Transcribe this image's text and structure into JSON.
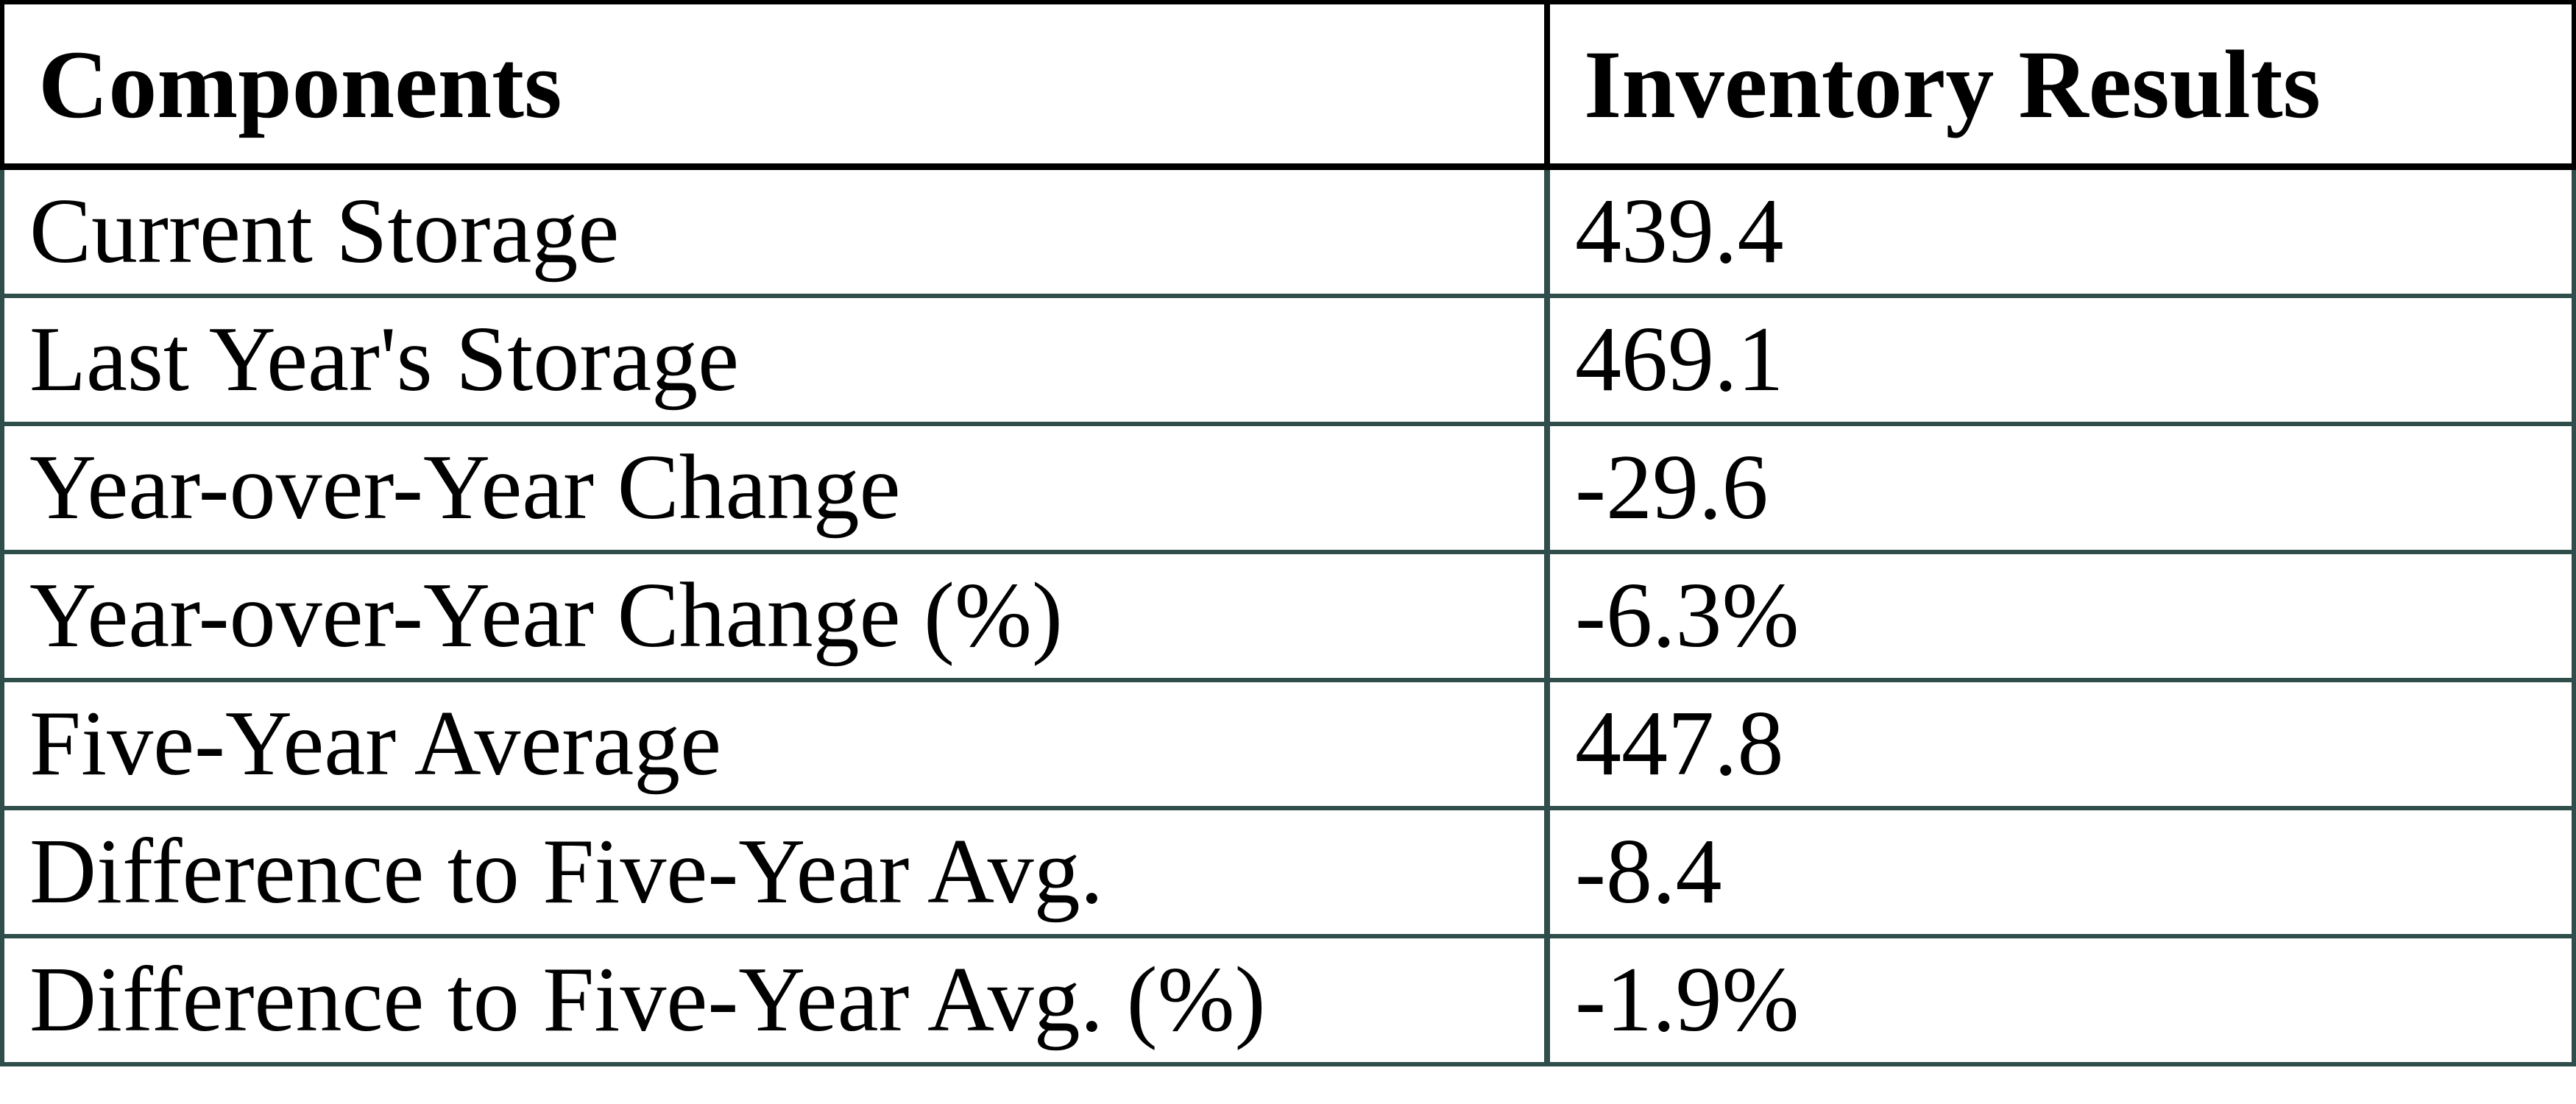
{
  "table": {
    "columns": [
      "Components",
      "Inventory Results"
    ],
    "rows": [
      {
        "component": "Current Storage",
        "value": "439.4"
      },
      {
        "component": "Last Year's Storage",
        "value": "469.1"
      },
      {
        "component": "Year-over-Year Change",
        "value": "-29.6"
      },
      {
        "component": "Year-over-Year Change (%)",
        "value": "-6.3%"
      },
      {
        "component": "Five-Year Average",
        "value": "447.8"
      },
      {
        "component": "Difference to Five-Year Avg.",
        "value": "-8.4"
      },
      {
        "component": "Difference to Five-Year Avg. (%)",
        "value": "-1.9%"
      }
    ]
  },
  "chart_data": {
    "type": "table",
    "columns": [
      "Components",
      "Inventory Results"
    ],
    "rows": [
      [
        "Current Storage",
        439.4
      ],
      [
        "Last Year's Storage",
        469.1
      ],
      [
        "Year-over-Year Change",
        -29.6
      ],
      [
        "Year-over-Year Change (%)",
        "-6.3%"
      ],
      [
        "Five-Year Average",
        447.8
      ],
      [
        "Difference to Five-Year Avg.",
        -8.4
      ],
      [
        "Difference to Five-Year Avg. (%)",
        "-1.9%"
      ]
    ]
  },
  "colors": {
    "border_header": "#000000",
    "border_body": "#2F4D4A",
    "text_color": "#000000",
    "bg_color": "#ffffff"
  }
}
